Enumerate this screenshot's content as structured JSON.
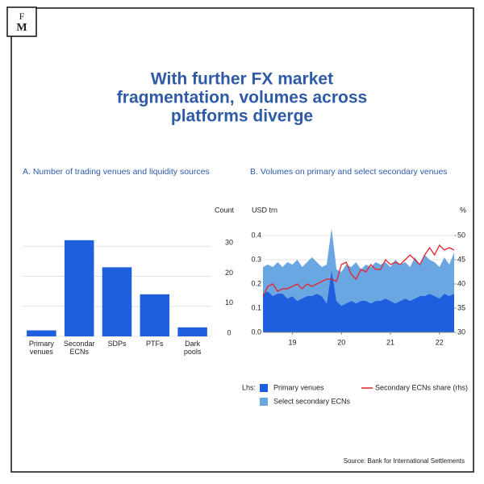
{
  "logo": {
    "top": "F",
    "bottom": "M"
  },
  "title": [
    "With further FX market",
    "fragmentation, volumes across",
    "platforms diverge"
  ],
  "source": "Source: Bank for International Settlements",
  "chart_data": [
    {
      "type": "bar",
      "subtitle": "A. Number of trading venues and liquidity sources",
      "y_label": "Count",
      "categories": [
        "Primary venues",
        "Secondar ECNs",
        "SDPs",
        "PTFs",
        "Dark pools"
      ],
      "values": [
        2,
        32,
        23,
        14,
        3
      ],
      "color": "#1d5fdc",
      "ylim": [
        0,
        40
      ],
      "yticks": [
        0,
        10,
        20,
        30
      ],
      "grid": true
    },
    {
      "type": "stacked-area-line",
      "subtitle": "B. Volumes on primary and select secondary venues",
      "y_label": "USD trn",
      "y2_label": "%",
      "legend_label": "Lhs:",
      "x": [
        2018.4,
        2018.5,
        2018.6,
        2018.7,
        2018.8,
        2018.9,
        2019.0,
        2019.1,
        2019.2,
        2019.3,
        2019.4,
        2019.5,
        2019.6,
        2019.7,
        2019.8,
        2019.9,
        2020.0,
        2020.1,
        2020.2,
        2020.3,
        2020.4,
        2020.5,
        2020.6,
        2020.7,
        2020.8,
        2020.9,
        2021.0,
        2021.1,
        2021.2,
        2021.3,
        2021.4,
        2021.5,
        2021.6,
        2021.7,
        2021.8,
        2021.9,
        2022.0,
        2022.1,
        2022.2,
        2022.3
      ],
      "xlim": [
        2018.4,
        2022.3
      ],
      "xticks": [
        {
          "value": 2019,
          "label": "19"
        },
        {
          "value": 2020,
          "label": "20"
        },
        {
          "value": 2021,
          "label": "21"
        },
        {
          "value": 2022,
          "label": "22"
        }
      ],
      "ylim": [
        0,
        0.48
      ],
      "yticks": [
        {
          "value": 0,
          "label": "0.0"
        },
        0.1,
        0.2,
        0.3,
        0.4
      ],
      "y2lim": [
        30,
        54
      ],
      "y2ticks": [
        30,
        35,
        40,
        45,
        50
      ],
      "grid": true,
      "series": [
        {
          "name": "Primary venues",
          "color": "#1d5fdc",
          "kind": "area",
          "values": [
            0.16,
            0.17,
            0.15,
            0.16,
            0.16,
            0.14,
            0.15,
            0.13,
            0.14,
            0.15,
            0.15,
            0.16,
            0.15,
            0.12,
            0.26,
            0.13,
            0.11,
            0.12,
            0.13,
            0.12,
            0.13,
            0.13,
            0.12,
            0.13,
            0.13,
            0.14,
            0.13,
            0.12,
            0.13,
            0.14,
            0.13,
            0.14,
            0.15,
            0.15,
            0.16,
            0.15,
            0.14,
            0.16,
            0.15,
            0.16
          ]
        },
        {
          "name": "Select secondary ECNs",
          "color": "#6aa6e2",
          "kind": "area",
          "values": [
            0.11,
            0.11,
            0.12,
            0.13,
            0.11,
            0.15,
            0.13,
            0.17,
            0.13,
            0.14,
            0.16,
            0.13,
            0.12,
            0.16,
            0.17,
            0.13,
            0.14,
            0.16,
            0.14,
            0.17,
            0.13,
            0.15,
            0.15,
            0.16,
            0.15,
            0.15,
            0.14,
            0.18,
            0.15,
            0.15,
            0.14,
            0.17,
            0.13,
            0.17,
            0.14,
            0.14,
            0.13,
            0.15,
            0.13,
            0.17
          ]
        },
        {
          "name": "Secondary ECNs share (rhs)",
          "color": "#e3242b",
          "kind": "line",
          "axis": "y2",
          "values": [
            37.5,
            39.5,
            40,
            38.5,
            39,
            39,
            39.5,
            40,
            39,
            40,
            39.5,
            40,
            40.5,
            41,
            41,
            40.5,
            44,
            44.5,
            42,
            41,
            43,
            42.5,
            44,
            43,
            43,
            45,
            44,
            44.5,
            44,
            45,
            46,
            45,
            44,
            46,
            47.5,
            46,
            48,
            47,
            47.5,
            47
          ]
        }
      ]
    }
  ]
}
